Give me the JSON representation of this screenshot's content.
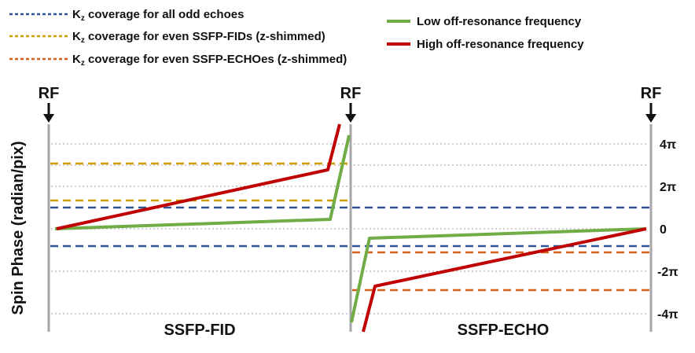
{
  "legend": {
    "odd_echoes": {
      "prefix": "K",
      "sub": "z",
      "rest": " coverage for all odd echoes",
      "color": "#2f5597"
    },
    "even_fids": {
      "prefix": "K",
      "sub": "z",
      "rest": " coverage for even SSFP-FIDs (z-shimmed)",
      "color": "#c9a000"
    },
    "even_echoes": {
      "prefix": "K",
      "sub": "z",
      "rest": " coverage for even SSFP-ECHOes (z-shimmed)",
      "color": "#d4601a"
    },
    "low_freq": {
      "label": "Low off-resonance frequency",
      "color": "#70ad47"
    },
    "high_freq": {
      "label": "High off-resonance frequency",
      "color": "#c00000"
    }
  },
  "rf_labels": [
    "RF",
    "RF",
    "RF"
  ],
  "y_axis_label": "Spin Phase (radian/pix)",
  "y_ticks": [
    "4π",
    "2π",
    "0",
    "-2π",
    "-4π"
  ],
  "sections": [
    "SSFP-FID",
    "SSFP-ECHO"
  ],
  "colors": {
    "grid": "#cfcfcf",
    "axis": "#a6a6a6",
    "arrow": "#111111"
  }
}
